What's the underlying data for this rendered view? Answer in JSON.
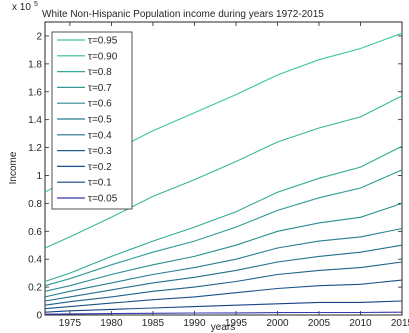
{
  "chart_data": {
    "type": "line",
    "title": "White Non-Hispanic Population income during years 1972-2015",
    "y_scale_note": "x 10",
    "y_scale_exponent": "5",
    "xlabel": "years",
    "ylabel": "Income",
    "xlim": [
      1972,
      2015
    ],
    "ylim": [
      0,
      210000
    ],
    "x_ticks": [
      1975,
      1980,
      1985,
      1990,
      1995,
      2000,
      2005,
      2010,
      2015
    ],
    "y_ticks": [
      {
        "value": 0,
        "label": "0"
      },
      {
        "value": 20000,
        "label": "0.2"
      },
      {
        "value": 40000,
        "label": "0.4"
      },
      {
        "value": 60000,
        "label": "0.6"
      },
      {
        "value": 80000,
        "label": "0.8"
      },
      {
        "value": 100000,
        "label": "1"
      },
      {
        "value": 120000,
        "label": "1.2"
      },
      {
        "value": 140000,
        "label": "1.4"
      },
      {
        "value": 160000,
        "label": "1.6"
      },
      {
        "value": 180000,
        "label": "1.8"
      },
      {
        "value": 200000,
        "label": "2"
      }
    ],
    "legend_placement": "top-left",
    "x": [
      1972,
      1975,
      1980,
      1985,
      1990,
      1995,
      2000,
      2005,
      2010,
      2015
    ],
    "series": [
      {
        "name": "τ=0.95",
        "color": "#3cc79a",
        "values": [
          88000,
          98000,
          117000,
          132000,
          145000,
          158000,
          172000,
          183000,
          191000,
          202000
        ]
      },
      {
        "name": "τ=0.90",
        "color": "#37b898",
        "values": [
          48000,
          56000,
          70000,
          85000,
          97000,
          110000,
          124000,
          134000,
          142000,
          157000
        ]
      },
      {
        "name": "τ=0.8",
        "color": "#33aa96",
        "values": [
          24000,
          30000,
          42000,
          53000,
          63000,
          74000,
          88000,
          98000,
          106000,
          121000
        ]
      },
      {
        "name": "τ=0.7",
        "color": "#2f9b94",
        "values": [
          21000,
          26000,
          36000,
          45000,
          53000,
          63000,
          75000,
          84000,
          91000,
          104000
        ]
      },
      {
        "name": "τ=0.6",
        "color": "#2b8c92",
        "values": [
          17000,
          21000,
          29000,
          36000,
          42000,
          50000,
          60000,
          66000,
          70000,
          80000
        ]
      },
      {
        "name": "τ=0.5",
        "color": "#277e90",
        "values": [
          13000,
          17000,
          23000,
          29000,
          34000,
          40000,
          48000,
          53000,
          56000,
          62000
        ]
      },
      {
        "name": "τ=0.4",
        "color": "#23708d",
        "values": [
          10000,
          13000,
          18000,
          23000,
          27000,
          32000,
          38000,
          42000,
          45000,
          50000
        ]
      },
      {
        "name": "τ=0.3",
        "color": "#1f618b",
        "values": [
          7000,
          9500,
          13000,
          17000,
          20000,
          24000,
          29000,
          32000,
          34000,
          38000
        ]
      },
      {
        "name": "τ=0.2",
        "color": "#1b5289",
        "values": [
          4500,
          6000,
          8500,
          11000,
          13000,
          16000,
          19000,
          21000,
          22000,
          25000
        ]
      },
      {
        "name": "τ=0.1",
        "color": "#174486",
        "values": [
          2000,
          3000,
          4000,
          5000,
          6000,
          7000,
          8000,
          9000,
          9000,
          10000
        ]
      },
      {
        "name": "τ=0.05",
        "color": "#3a3ab0",
        "values": [
          600,
          800,
          1000,
          1200,
          1400,
          1500,
          1700,
          1800,
          1800,
          2000
        ]
      }
    ]
  }
}
